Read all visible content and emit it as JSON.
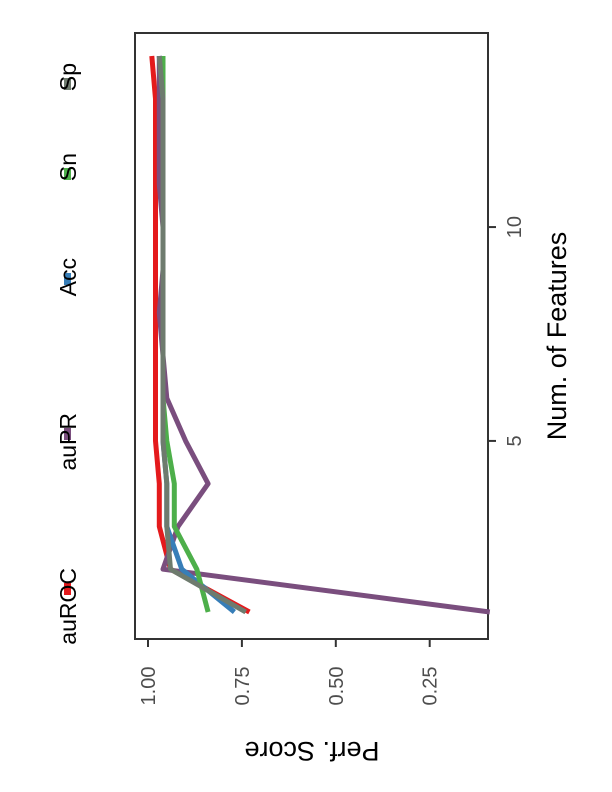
{
  "chart_data": {
    "type": "line",
    "orientation": "rotated-90-clockwise",
    "xlabel": "Num. of Features",
    "ylabel": "Perf. Score",
    "x_ticks": [
      5,
      10
    ],
    "y_ticks": [
      {
        "value": 1.0,
        "label": "1.00"
      },
      {
        "value": 0.75,
        "label": "0.75"
      },
      {
        "value": 0.5,
        "label": "0.50"
      },
      {
        "value": 0.25,
        "label": "0.25"
      }
    ],
    "xlim": [
      0.5,
      14.5
    ],
    "ylim": [
      0.07,
      1.02
    ],
    "grid": false,
    "legend_position": "top",
    "x": [
      1,
      2,
      3,
      4,
      5,
      6,
      7,
      8,
      9,
      10,
      11,
      12,
      13,
      14
    ],
    "series": [
      {
        "name": "auROC",
        "color": "#E41A1C",
        "values": [
          0.73,
          0.94,
          0.97,
          0.97,
          0.98,
          0.98,
          0.98,
          0.98,
          0.98,
          0.98,
          0.98,
          0.98,
          0.98,
          0.99
        ]
      },
      {
        "name": "auPR",
        "color": "#7A4E7E",
        "values": [
          0.09,
          0.96,
          0.92,
          0.84,
          0.9,
          0.95,
          0.96,
          0.97,
          0.96,
          0.96,
          0.97,
          0.97,
          0.97,
          0.97
        ]
      },
      {
        "name": "Acc",
        "color": "#377EB8",
        "values": [
          0.77,
          0.91,
          0.95,
          0.95,
          0.96,
          0.96,
          0.96,
          0.96,
          0.96,
          0.96,
          0.96,
          0.96,
          0.96,
          0.97
        ]
      },
      {
        "name": "Sn",
        "color": "#4DAF4A",
        "values": [
          0.84,
          0.87,
          0.93,
          0.93,
          0.95,
          0.96,
          0.96,
          0.96,
          0.96,
          0.96,
          0.96,
          0.96,
          0.96,
          0.96
        ]
      },
      {
        "name": "Sp",
        "color": "#6E7B6E",
        "values": [
          0.74,
          0.94,
          0.95,
          0.95,
          0.96,
          0.96,
          0.96,
          0.96,
          0.96,
          0.96,
          0.96,
          0.96,
          0.96,
          0.97
        ]
      }
    ]
  }
}
